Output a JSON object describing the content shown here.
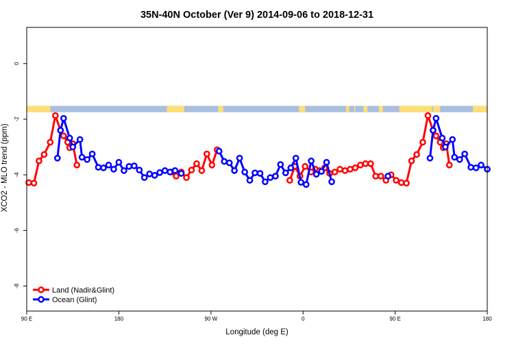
{
  "chart_data": {
    "type": "line",
    "title": "35N-40N October (Ver 9)   2014-09-06 to 2018-12-31",
    "xlabel": "Longitude (deg E)",
    "ylabel": "XCO2 - MLO trend (ppm)",
    "xlim": [
      90,
      540
    ],
    "ylim": [
      -8.9,
      1.3
    ],
    "x_ticks": [
      {
        "value": 90,
        "label": "90 E"
      },
      {
        "value": 180,
        "label": "180"
      },
      {
        "value": 270,
        "label": "90 W"
      },
      {
        "value": 360,
        "label": "0"
      },
      {
        "value": 450,
        "label": "90 E"
      },
      {
        "value": 540,
        "label": "180"
      }
    ],
    "y_ticks": [
      {
        "value": 0,
        "label": "0"
      },
      {
        "value": -2,
        "label": "-2"
      },
      {
        "value": -4,
        "label": "-4"
      },
      {
        "value": -6,
        "label": "-6"
      },
      {
        "value": -8,
        "label": "-8"
      }
    ],
    "legend_position": "bottom-left",
    "land_ocean_strip": {
      "y_range": [
        -1.75,
        -1.52
      ],
      "ocean_color": "#a9bfdf",
      "land_color": "#fddf75",
      "land_segments": [
        [
          90,
          113
        ],
        [
          227,
          244
        ],
        [
          277,
          282
        ],
        [
          356,
          362
        ],
        [
          402,
          405
        ],
        [
          410,
          411
        ],
        [
          419,
          423
        ],
        [
          434,
          438
        ],
        [
          454,
          486
        ],
        [
          487,
          494
        ],
        [
          526,
          540
        ]
      ]
    },
    "series": [
      {
        "name": "Land (Nadir&Glint)",
        "color": "#ff0000",
        "points": [
          [
            92,
            -4.28
          ],
          [
            97,
            -4.3
          ],
          [
            102,
            -3.5
          ],
          [
            107,
            -3.27
          ],
          [
            113,
            -2.83
          ],
          [
            118,
            -1.87
          ],
          [
            123,
            -2.4
          ],
          [
            126,
            -2.6
          ],
          [
            130,
            -2.83
          ],
          [
            132,
            -3.03
          ],
          [
            135,
            -2.88
          ],
          [
            139,
            -3.65
          ],
          [
            232,
            -3.9
          ],
          [
            236,
            -4.05
          ],
          [
            241,
            -3.9
          ],
          [
            246,
            -4.1
          ],
          [
            251,
            -3.83
          ],
          [
            256,
            -3.6
          ],
          [
            261,
            -3.85
          ],
          [
            266,
            -3.25
          ],
          [
            271,
            -3.65
          ],
          [
            276,
            -3.1
          ],
          [
            347,
            -4.2
          ],
          [
            352,
            -3.7
          ],
          [
            357,
            -4.05
          ],
          [
            362,
            -3.7
          ],
          [
            368,
            -3.9
          ],
          [
            372,
            -3.8
          ],
          [
            376,
            -3.85
          ],
          [
            381,
            -3.75
          ],
          [
            386,
            -3.95
          ],
          [
            391,
            -3.9
          ],
          [
            396,
            -3.8
          ],
          [
            401,
            -3.85
          ],
          [
            406,
            -3.8
          ],
          [
            411,
            -3.75
          ],
          [
            416,
            -3.65
          ],
          [
            421,
            -3.6
          ],
          [
            426,
            -3.6
          ],
          [
            431,
            -4.05
          ],
          [
            436,
            -4.05
          ],
          [
            441,
            -4.2
          ],
          [
            446,
            -4.0
          ],
          [
            451,
            -4.2
          ],
          [
            456,
            -4.28
          ],
          [
            461,
            -4.3
          ],
          [
            466,
            -3.5
          ],
          [
            471,
            -3.27
          ],
          [
            477,
            -2.83
          ],
          [
            482,
            -1.87
          ],
          [
            487,
            -2.4
          ],
          [
            490,
            -2.6
          ],
          [
            494,
            -2.83
          ],
          [
            497,
            -3.03
          ],
          [
            500,
            -2.88
          ],
          [
            503,
            -3.65
          ]
        ]
      },
      {
        "name": "Ocean (Glint)",
        "color": "#0000ff",
        "points": [
          [
            120,
            -3.4
          ],
          [
            123,
            -2.4
          ],
          [
            126,
            -1.97
          ],
          [
            132,
            -2.68
          ],
          [
            135,
            -3.0
          ],
          [
            142,
            -2.73
          ],
          [
            144,
            -3.37
          ],
          [
            149,
            -3.45
          ],
          [
            154,
            -3.25
          ],
          [
            160,
            -3.73
          ],
          [
            165,
            -3.75
          ],
          [
            170,
            -3.65
          ],
          [
            175,
            -3.8
          ],
          [
            180,
            -3.55
          ],
          [
            185,
            -3.85
          ],
          [
            190,
            -3.7
          ],
          [
            195,
            -3.68
          ],
          [
            200,
            -3.83
          ],
          [
            205,
            -4.1
          ],
          [
            210,
            -3.97
          ],
          [
            215,
            -4.02
          ],
          [
            220,
            -3.92
          ],
          [
            225,
            -3.85
          ],
          [
            230,
            -3.9
          ],
          [
            235,
            -3.85
          ],
          [
            241,
            -3.95
          ],
          [
            278,
            -3.15
          ],
          [
            283,
            -3.52
          ],
          [
            288,
            -3.57
          ],
          [
            293,
            -3.85
          ],
          [
            298,
            -3.4
          ],
          [
            303,
            -3.9
          ],
          [
            308,
            -4.2
          ],
          [
            313,
            -3.93
          ],
          [
            318,
            -3.95
          ],
          [
            323,
            -4.25
          ],
          [
            328,
            -4.1
          ],
          [
            333,
            -4.05
          ],
          [
            338,
            -3.63
          ],
          [
            343,
            -3.93
          ],
          [
            348,
            -3.75
          ],
          [
            353,
            -3.4
          ],
          [
            358,
            -4.27
          ],
          [
            363,
            -4.35
          ],
          [
            368,
            -3.5
          ],
          [
            373,
            -3.98
          ],
          [
            378,
            -3.88
          ],
          [
            383,
            -3.55
          ],
          [
            388,
            -4.25
          ],
          [
            443,
            -4.05
          ],
          [
            484,
            -3.4
          ],
          [
            487,
            -2.4
          ],
          [
            490,
            -1.97
          ],
          [
            496,
            -2.68
          ],
          [
            499,
            -3.0
          ],
          [
            506,
            -2.73
          ],
          [
            508,
            -3.37
          ],
          [
            513,
            -3.45
          ],
          [
            518,
            -3.25
          ],
          [
            524,
            -3.73
          ],
          [
            529,
            -3.75
          ],
          [
            534,
            -3.65
          ],
          [
            540,
            -3.8
          ]
        ]
      }
    ]
  }
}
